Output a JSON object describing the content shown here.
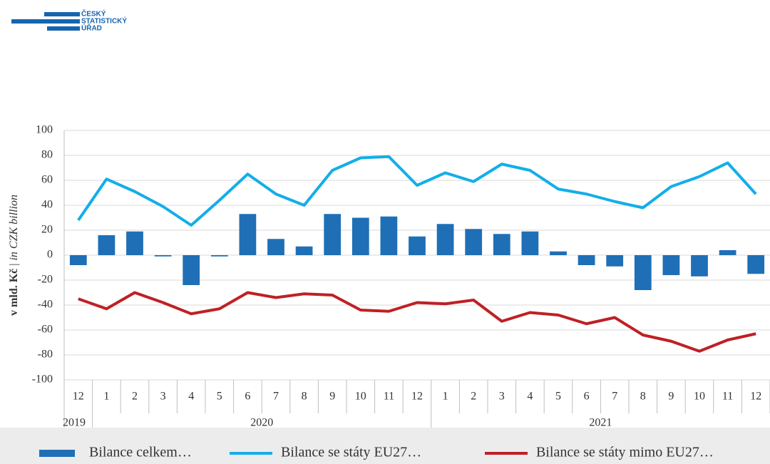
{
  "logo": {
    "lines": [
      "ČESKÝ",
      "STATISTICKÝ",
      "ÚŘAD"
    ]
  },
  "chart_data": {
    "type": "bar_line",
    "y_label": {
      "main": "v mld. Kč",
      "separator": "|",
      "sub": "in CZK billion"
    },
    "categories": [
      "12",
      "1",
      "2",
      "3",
      "4",
      "5",
      "6",
      "7",
      "8",
      "9",
      "10",
      "11",
      "12",
      "1",
      "2",
      "3",
      "4",
      "5",
      "6",
      "7",
      "8",
      "9",
      "10",
      "11",
      "12"
    ],
    "years": [
      "2019",
      "2020",
      "2021"
    ],
    "series": [
      {
        "name": "Bilance celkem…",
        "kind": "bar",
        "color": "#1f6fb6",
        "values": [
          -8,
          16,
          19,
          -1,
          -24,
          -1,
          33,
          13,
          7,
          33,
          30,
          31,
          15,
          25,
          21,
          17,
          19,
          3,
          -8,
          -9,
          -28,
          -16,
          -17,
          4,
          -15
        ]
      },
      {
        "name": "Bilance se státy EU27…",
        "kind": "line",
        "color": "#13aee8",
        "values": [
          28,
          61,
          51,
          39,
          24,
          44,
          65,
          49,
          40,
          68,
          78,
          79,
          56,
          66,
          59,
          73,
          68,
          53,
          49,
          43,
          38,
          55,
          63,
          74,
          49
        ]
      },
      {
        "name": "Bilance se státy mimo EU27…",
        "kind": "line",
        "color": "#bf2025",
        "values": [
          -35,
          -43,
          -30,
          -38,
          -47,
          -43,
          -30,
          -34,
          -31,
          -32,
          -44,
          -45,
          -38,
          -39,
          -36,
          -53,
          -46,
          -48,
          -55,
          -50,
          -64,
          -69,
          -77,
          -68,
          -63
        ]
      }
    ],
    "ylim": [
      -100,
      100
    ],
    "yticks": [
      -100,
      -80,
      -60,
      -40,
      -20,
      0,
      20,
      40,
      60,
      80,
      100
    ],
    "grid": true,
    "legend": "bottom"
  }
}
